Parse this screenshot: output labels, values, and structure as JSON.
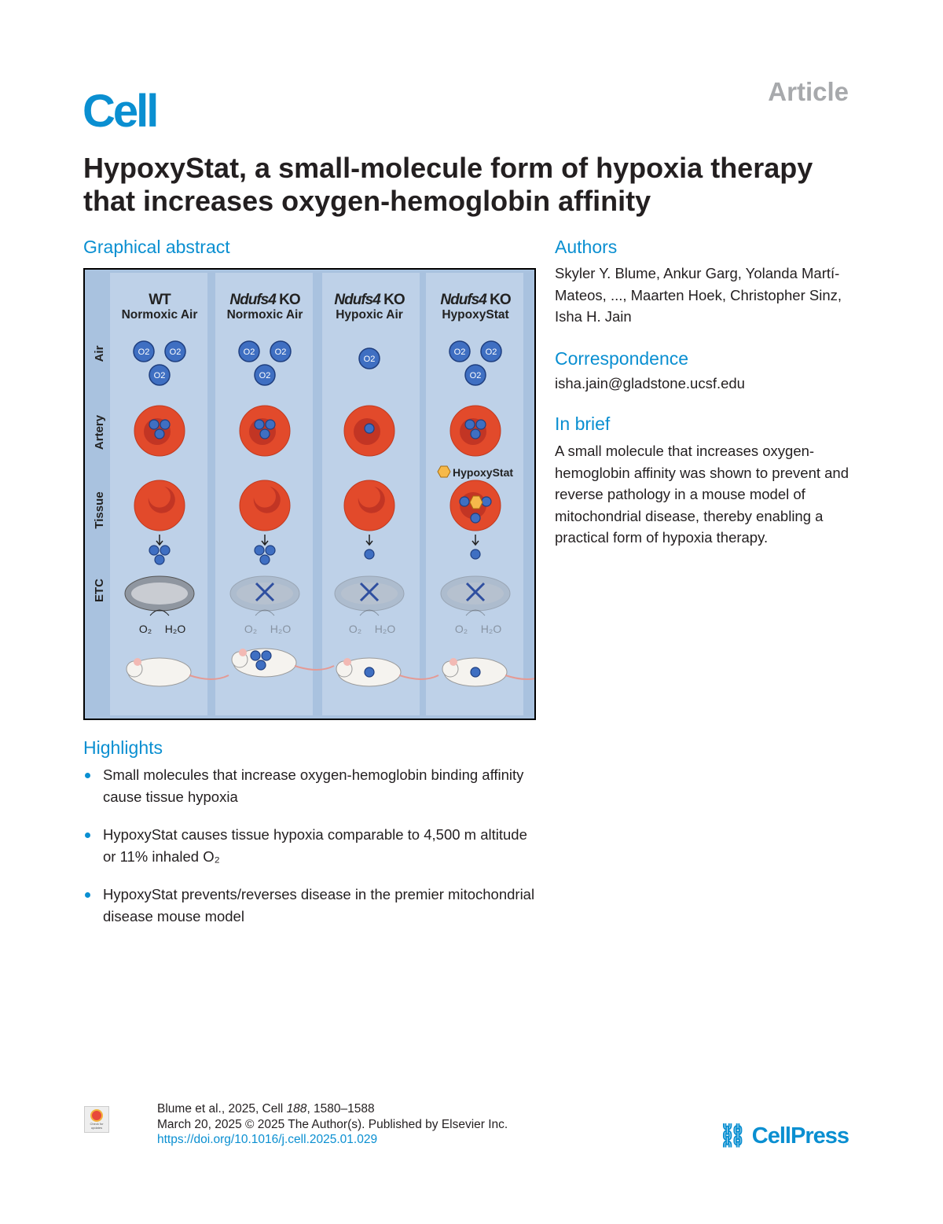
{
  "header": {
    "journal": "Cell",
    "article_type": "Article"
  },
  "title": "HypoxyStat, a small-molecule form of hypoxia therapy that increases oxygen-hemoglobin affinity",
  "graphical_abstract": {
    "heading": "Graphical abstract",
    "row_labels": [
      "Air",
      "Artery",
      "Tissue",
      "ETC"
    ],
    "columns": [
      {
        "genotype": "WT",
        "genotype_italic": "",
        "condition": "Normoxic Air",
        "air_o2": 3,
        "artery_o2": 3,
        "tissue_release": 3,
        "etc_active": true,
        "mouse_o2": 0,
        "mouse_sick": false
      },
      {
        "genotype": "KO",
        "genotype_italic": "Ndufs4",
        "condition": "Normoxic Air",
        "air_o2": 3,
        "artery_o2": 3,
        "tissue_release": 3,
        "etc_active": false,
        "mouse_o2": 3,
        "mouse_sick": true
      },
      {
        "genotype": "KO",
        "genotype_italic": "Ndufs4",
        "condition": "Hypoxic Air",
        "air_o2": 1,
        "artery_o2": 1,
        "tissue_release": 1,
        "etc_active": false,
        "mouse_o2": 1,
        "mouse_sick": false
      },
      {
        "genotype": "KO",
        "genotype_italic": "Ndufs4",
        "condition": "HypoxyStat",
        "air_o2": 3,
        "artery_o2": 3,
        "tissue_release": 1,
        "etc_active": false,
        "mouse_o2": 1,
        "mouse_sick": false
      }
    ],
    "drug_label": "HypoxyStat",
    "o2_label": "O2",
    "etc_labels": {
      "o2": "O₂",
      "h2o": "H₂O"
    },
    "colors": {
      "background": "#9db8d8",
      "o2": "#3f6fc2",
      "rbc": "#e24a2b",
      "drug": "#f6b94a"
    }
  },
  "highlights": {
    "heading": "Highlights",
    "items": [
      "Small molecules that increase oxygen-hemoglobin binding affinity cause tissue hypoxia",
      "HypoxyStat causes tissue hypoxia comparable to 4,500 m altitude or 11% inhaled O₂",
      "HypoxyStat prevents/reverses disease in the premier mitochondrial disease mouse model"
    ]
  },
  "authors": {
    "heading": "Authors",
    "text": "Skyler Y. Blume, Ankur Garg, Yolanda Martí-Mateos, ..., Maarten Hoek, Christopher Sinz, Isha H. Jain"
  },
  "correspondence": {
    "heading": "Correspondence",
    "email": "isha.jain@gladstone.ucsf.edu"
  },
  "in_brief": {
    "heading": "In brief",
    "text": "A small molecule that increases oxygen-hemoglobin affinity was shown to prevent and reverse pathology in a mouse model of mitochondrial disease, thereby enabling a practical form of hypoxia therapy."
  },
  "footer": {
    "citation_pre": "Blume et al., 2025, Cell ",
    "citation_volume": "188",
    "citation_post": ", 1580–1588",
    "date_line": "March 20, 2025 © 2025 The Author(s). Published by Elsevier Inc.",
    "doi": "https://doi.org/10.1016/j.cell.2025.01.029",
    "badge": "Check for updates",
    "publisher": "CellPress"
  }
}
